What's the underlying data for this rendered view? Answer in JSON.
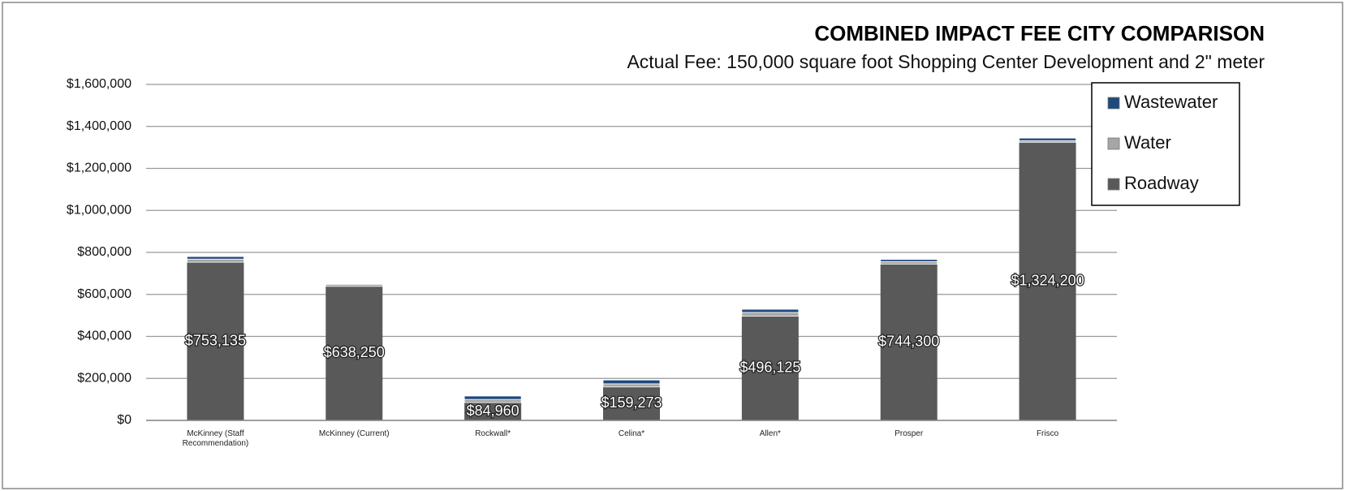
{
  "chart_data": {
    "type": "stacked_bar",
    "title": "COMBINED IMPACT FEE CITY COMPARISON",
    "subtitle": "Actual Fee: 150,000 square foot Shopping Center Development and 2\" meter",
    "categories": [
      "McKinney (Staff Recommendation)",
      "McKinney (Current)",
      "Rockwall*",
      "Celina*",
      "Allen*",
      "Prosper",
      "Frisco"
    ],
    "series": [
      {
        "name": "Roadway",
        "color": "#595959",
        "values": [
          753135,
          638250,
          84960,
          159273,
          496125,
          744300,
          1324200
        ],
        "value_labels": [
          "$753,135",
          "$638,250",
          "$84,960",
          "$159,273",
          "$496,125",
          "$744,300",
          "$1,324,200"
        ]
      },
      {
        "name": "Water",
        "color": "#a6a6a6",
        "values": [
          15000,
          10000,
          15000,
          15000,
          18000,
          12000,
          8000
        ]
      },
      {
        "name": "Wastewater",
        "color": "#1f497d",
        "values": [
          12000,
          3000,
          16000,
          18000,
          15000,
          10000,
          12000
        ]
      }
    ],
    "ylim": [
      0,
      1600000
    ],
    "yticks": [
      {
        "value": 0,
        "label": "$0"
      },
      {
        "value": 200000,
        "label": "$200,000"
      },
      {
        "value": 400000,
        "label": "$400,000"
      },
      {
        "value": 600000,
        "label": "$600,000"
      },
      {
        "value": 800000,
        "label": "$800,000"
      },
      {
        "value": 1000000,
        "label": "$1,000,000"
      },
      {
        "value": 1200000,
        "label": "$1,200,000"
      },
      {
        "value": 1400000,
        "label": "$1,400,000"
      },
      {
        "value": 1600000,
        "label": "$1,600,000"
      }
    ],
    "grid": true,
    "legend": "upper right"
  }
}
